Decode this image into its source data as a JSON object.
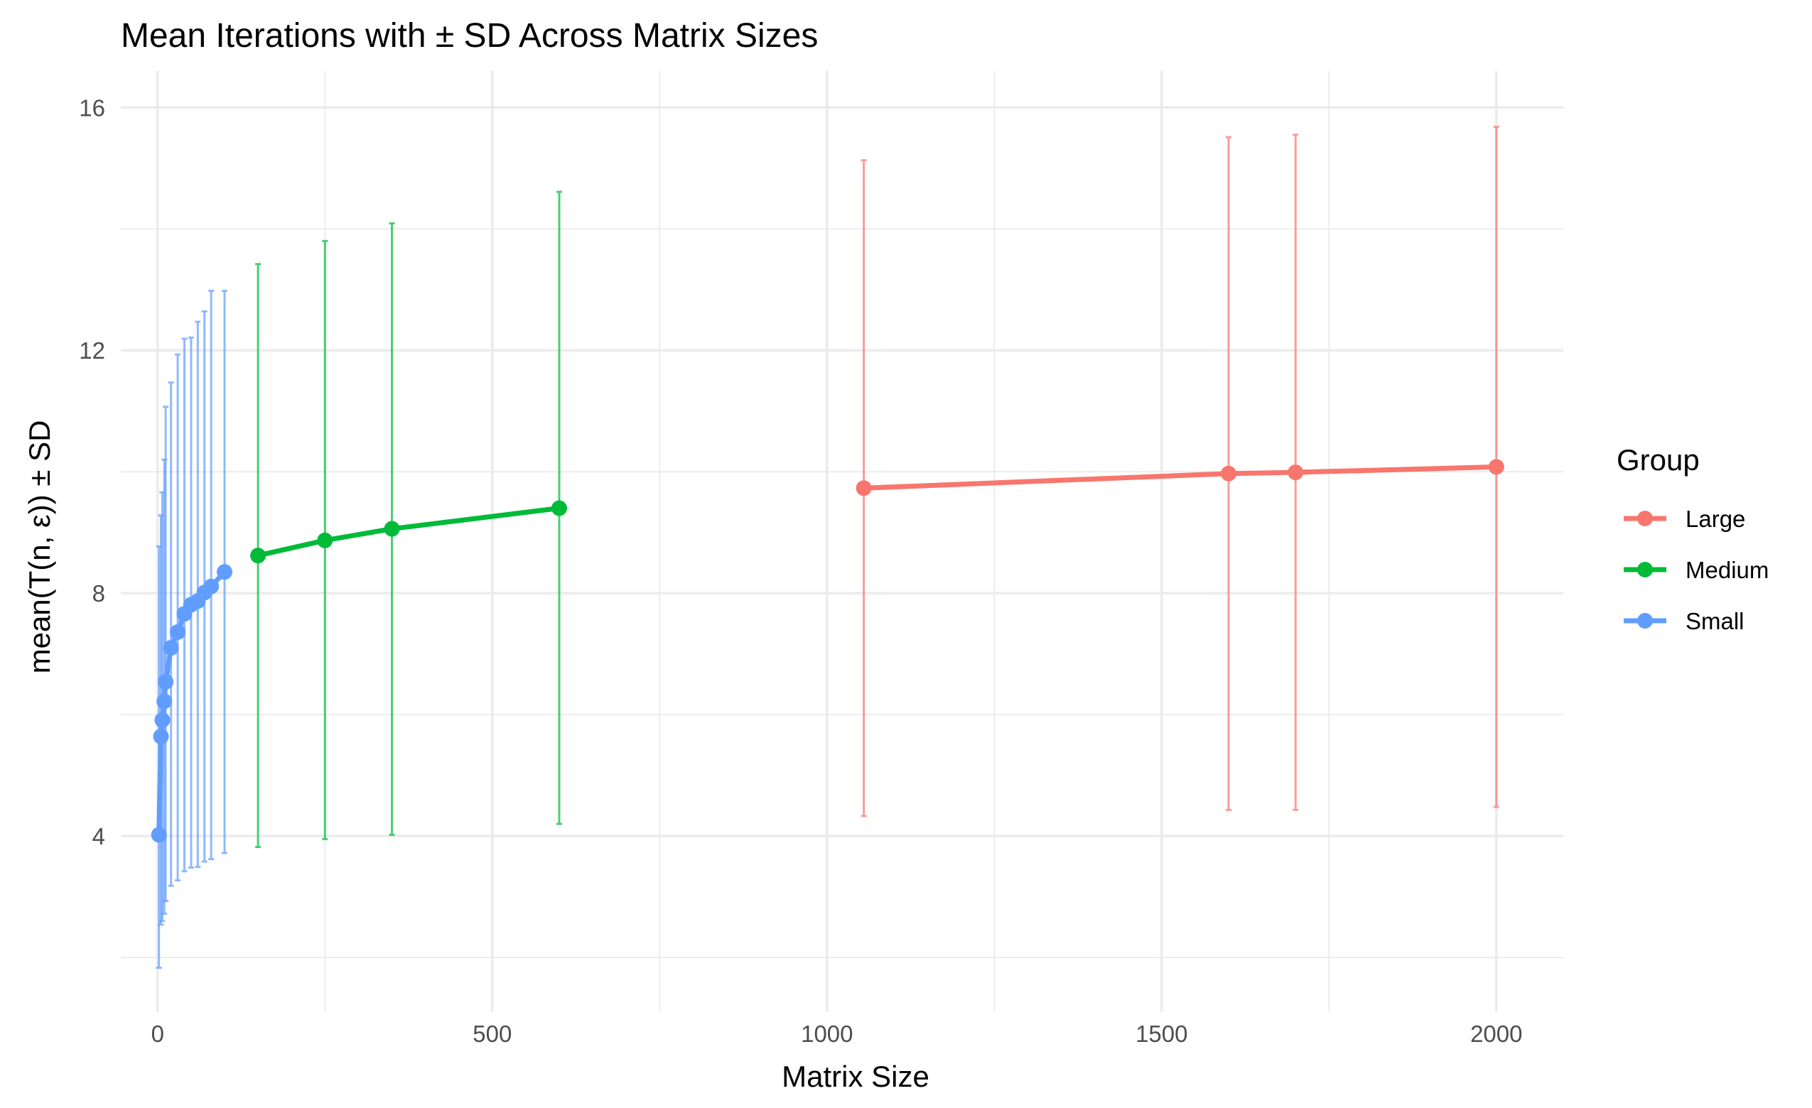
{
  "chart_data": {
    "type": "line",
    "title": "Mean Iterations with ± SD Across Matrix Sizes",
    "xlabel": "Matrix Size",
    "ylabel": "mean(T(n, ε)) ± SD",
    "xlim": [
      -55,
      2100
    ],
    "ylim": [
      1.1,
      16.6
    ],
    "x_ticks": [
      0,
      500,
      1000,
      1500,
      2000
    ],
    "x_tick_labels": [
      "0",
      "500",
      "1000",
      "1500",
      "2000"
    ],
    "y_ticks": [
      4,
      8,
      12,
      16
    ],
    "y_tick_labels": [
      "4",
      "8",
      "12",
      "16"
    ],
    "grid": true,
    "legend": {
      "title": "Group",
      "position": "right",
      "entries": [
        "Large",
        "Medium",
        "Small"
      ]
    },
    "series": [
      {
        "name": "Large",
        "color": "#F8766D",
        "x": [
          1055,
          1600,
          1700,
          2000
        ],
        "mean": [
          9.73,
          9.97,
          9.99,
          10.08
        ],
        "lower": [
          4.33,
          4.43,
          4.43,
          4.48
        ],
        "upper": [
          15.13,
          15.51,
          15.55,
          15.68
        ]
      },
      {
        "name": "Medium",
        "color": "#00BA38",
        "x": [
          150,
          250,
          350,
          600
        ],
        "mean": [
          8.62,
          8.87,
          9.06,
          9.4
        ],
        "lower": [
          3.82,
          3.95,
          4.02,
          4.2
        ],
        "upper": [
          13.42,
          13.8,
          14.09,
          14.61
        ]
      },
      {
        "name": "Small",
        "color": "#619CFF",
        "x": [
          2,
          5,
          7,
          10,
          12,
          20,
          30,
          40,
          50,
          60,
          70,
          80,
          100
        ],
        "mean": [
          4.02,
          5.64,
          5.91,
          6.22,
          6.54,
          7.1,
          7.36,
          7.66,
          7.81,
          7.87,
          8.01,
          8.11,
          8.35
        ],
        "lower": [
          1.83,
          2.54,
          2.6,
          2.72,
          2.93,
          3.18,
          3.27,
          3.42,
          3.48,
          3.49,
          3.58,
          3.62,
          3.72
        ],
        "upper": [
          8.77,
          9.28,
          9.66,
          10.2,
          11.07,
          11.47,
          11.93,
          12.19,
          12.21,
          12.47,
          12.64,
          12.98,
          12.98
        ]
      }
    ]
  }
}
